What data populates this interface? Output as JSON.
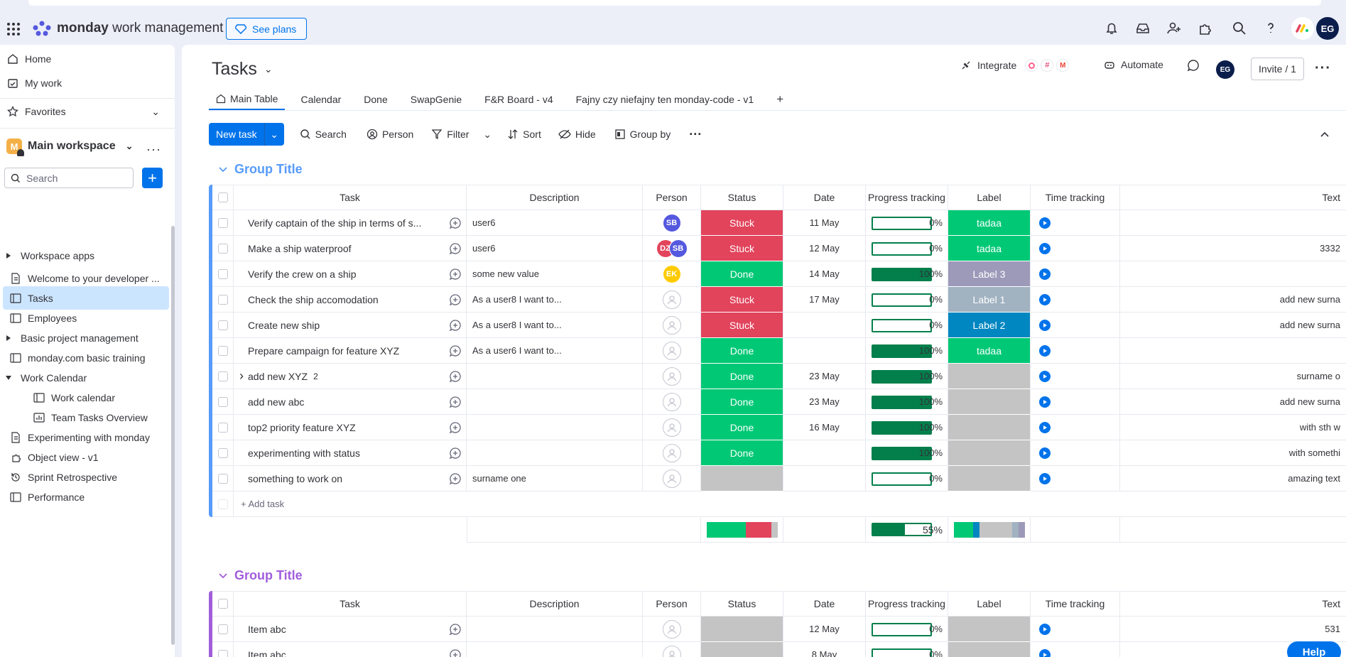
{
  "app": {
    "brand_bold": "monday",
    "brand_rest": " work management",
    "see_plans": "See plans",
    "user_initials": "EG"
  },
  "sidebar": {
    "home": "Home",
    "my_work": "My work",
    "favorites": "Favorites",
    "workspace": "Main workspace",
    "workspace_initial": "M",
    "search_placeholder": "Search",
    "items": [
      {
        "label": "Workspace apps",
        "icon": "caret-right-icon"
      },
      {
        "label": "Welcome to your developer ...",
        "icon": "doc-icon"
      },
      {
        "label": "Tasks",
        "icon": "board-icon",
        "selected": true
      },
      {
        "label": "Employees",
        "icon": "board-icon"
      },
      {
        "label": "Basic project management",
        "icon": "caret-right-icon"
      },
      {
        "label": "monday.com basic training",
        "icon": "board-icon"
      },
      {
        "label": "Work Calendar",
        "icon": "caret-down-icon"
      },
      {
        "label": "Work calendar",
        "icon": "board-icon"
      },
      {
        "label": "Team Tasks Overview",
        "icon": "dashboard-icon"
      },
      {
        "label": "Experimenting with monday",
        "icon": "doc-icon"
      },
      {
        "label": "Object view - v1",
        "icon": "app-icon"
      },
      {
        "label": "Sprint Retrospective",
        "icon": "history-icon"
      },
      {
        "label": "Performance",
        "icon": "board-icon"
      }
    ]
  },
  "board": {
    "title": "Tasks",
    "integrate": "Integrate",
    "automate": "Automate",
    "invite": "Invite / 1",
    "owner_initials": "EG",
    "tabs": [
      "Main Table",
      "Calendar",
      "Done",
      "SwapGenie",
      "F&R Board - v4",
      "Fajny czy niefajny ten monday-code - v1",
      "+"
    ],
    "toolbar": {
      "new_task": "New task",
      "search": "Search",
      "person": "Person",
      "filter": "Filter",
      "sort": "Sort",
      "hide": "Hide",
      "group_by": "Group by"
    }
  },
  "columns": [
    "Task",
    "Description",
    "Person",
    "Status",
    "Date",
    "Progress tracking",
    "Label",
    "Time tracking",
    "Text"
  ],
  "groups": [
    {
      "title": "Group Title",
      "color": "#579bfc",
      "add_task": "+ Add task",
      "summary_progress": "55%",
      "rows": [
        {
          "task": "Verify captain of the ship in terms of s...",
          "desc": "user6",
          "person": [
            {
              "i": "SB",
              "c": "#5559df"
            }
          ],
          "status": "Stuck",
          "date": "11 May",
          "progress": 0,
          "ptxt": "0%",
          "label": "tadaa",
          "text": ""
        },
        {
          "task": "Make a ship waterproof",
          "desc": "user6",
          "person": [
            {
              "i": "DZ",
              "c": "#e2445c"
            },
            {
              "i": "SB",
              "c": "#5559df"
            }
          ],
          "status": "Stuck",
          "date": "12 May",
          "progress": 0,
          "ptxt": "0%",
          "label": "tadaa",
          "text": "3332"
        },
        {
          "task": "Verify the crew on a ship",
          "desc": "some new value",
          "person": [
            {
              "i": "EK",
              "c": "#ffcb00"
            }
          ],
          "status": "Done",
          "date": "14 May",
          "progress": 100,
          "ptxt": "100%",
          "label": "Label 3",
          "text": ""
        },
        {
          "task": "Check the ship accomodation",
          "desc": "As a user8 I want to...",
          "person": [],
          "status": "Stuck",
          "date": "17 May",
          "progress": 0,
          "ptxt": "0%",
          "label": "Label 1",
          "text": "add new surna"
        },
        {
          "task": "Create new ship",
          "desc": "As a user8 I want to...",
          "person": [],
          "status": "Stuck",
          "date": "",
          "progress": 0,
          "ptxt": "0%",
          "label": "Label 2",
          "text": "add new surna"
        },
        {
          "task": "Prepare campaign for feature XYZ",
          "desc": "As a user6 I want to...",
          "person": [],
          "status": "Done",
          "date": "",
          "progress": 100,
          "ptxt": "100%",
          "label": "tadaa",
          "text": ""
        },
        {
          "task": "add new XYZ",
          "sub": "2",
          "desc": "",
          "person": [],
          "status": "Done",
          "date": "23 May",
          "progress": 100,
          "ptxt": "100%",
          "label": "",
          "text": "surname o"
        },
        {
          "task": "add new abc",
          "desc": "",
          "person": [],
          "status": "Done",
          "date": "23 May",
          "progress": 100,
          "ptxt": "100%",
          "label": "",
          "text": "add new surna"
        },
        {
          "task": "top2 priority feature XYZ",
          "desc": "",
          "person": [],
          "status": "Done",
          "date": "16 May",
          "progress": 100,
          "ptxt": "100%",
          "label": "",
          "text": "with sth w"
        },
        {
          "task": "experimenting with status",
          "desc": "",
          "person": [],
          "status": "Done",
          "date": "",
          "progress": 100,
          "ptxt": "100%",
          "label": "",
          "text": "with somethi"
        },
        {
          "task": "something to work on",
          "desc": "surname one",
          "person": [],
          "status": "",
          "date": "",
          "progress": 0,
          "ptxt": "0%",
          "label": "",
          "text": "amazing text"
        }
      ]
    },
    {
      "title": "Group Title",
      "color": "#a25ddc",
      "rows": [
        {
          "task": "Item abc",
          "desc": "",
          "person": [],
          "status": "",
          "date": "12 May",
          "progress": 0,
          "ptxt": "0%",
          "label": "",
          "text": "531"
        },
        {
          "task": "Item abc",
          "desc": "",
          "person": [],
          "status": "",
          "date": "8 May",
          "progress": 0,
          "ptxt": "0%",
          "label": "",
          "text": ""
        }
      ]
    }
  ],
  "colors": {
    "Stuck": "#e2445c",
    "Done": "#00c875",
    "": "#c4c4c4",
    "tadaa": "#00c875",
    "Label 3": "#9d99b9",
    "Label 1": "#a1b2c1",
    "Label 2": "#0086c0"
  },
  "help": "Help"
}
